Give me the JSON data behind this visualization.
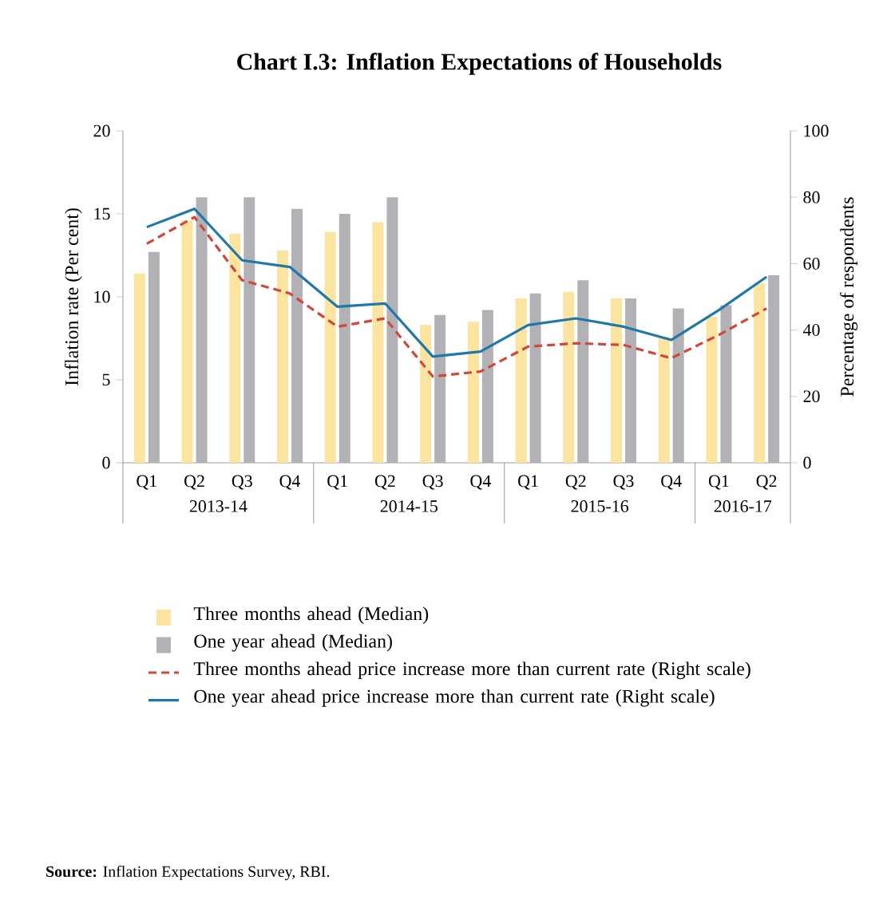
{
  "chart_data": {
    "type": "bar",
    "title": "Chart I.3: Inflation Expectations of Households",
    "ylabel": "Inflation rate (Per cent)",
    "y2label": "Percentage of respondents",
    "categories": [
      "Q1",
      "Q2",
      "Q3",
      "Q4",
      "Q1",
      "Q2",
      "Q3",
      "Q4",
      "Q1",
      "Q2",
      "Q3",
      "Q4",
      "Q1",
      "Q2"
    ],
    "series": [
      {
        "name": "Three months ahead (Median)",
        "type": "bar",
        "color": "#fbe3a0",
        "values": [
          11.4,
          14.6,
          13.8,
          12.8,
          13.9,
          14.5,
          8.3,
          8.5,
          9.9,
          10.3,
          9.9,
          7.6,
          8.8,
          10.8
        ]
      },
      {
        "name": "One year ahead (Median)",
        "type": "bar",
        "color": "#b2b2b6",
        "values": [
          12.7,
          16.0,
          16.0,
          15.3,
          15.0,
          16.0,
          8.9,
          9.2,
          10.2,
          11.0,
          9.9,
          9.3,
          9.5,
          11.3
        ]
      },
      {
        "name": "Three months ahead price increase more than current rate (Right  scale)",
        "type": "line",
        "axis": "y2",
        "line_style": "dashed",
        "color": "#d2473a",
        "values": [
          66,
          74,
          55,
          51,
          41,
          43.5,
          26,
          27.5,
          35,
          36,
          35.5,
          31.5,
          38.5,
          46.5
        ]
      },
      {
        "name": "One year ahead price increase more than current rate (Right scale)",
        "type": "line",
        "axis": "y2",
        "line_style": "solid",
        "color": "#1f78a8",
        "values": [
          71,
          76.5,
          61,
          59,
          47,
          48,
          32,
          33.5,
          41.5,
          43.5,
          41,
          37,
          46,
          56
        ]
      }
    ],
    "ylim": [
      0,
      20
    ],
    "yticks": [
      0,
      5,
      10,
      15,
      20
    ],
    "y2lim": [
      0,
      100
    ],
    "y2ticks": [
      0,
      20,
      40,
      60,
      80,
      100
    ],
    "legend": "bottom",
    "annotations": [
      "2013-14",
      "2014-15",
      "2015-16",
      "2016-17",
      "**Source:** Inflation Expectations Survey, RBI."
    ]
  }
}
